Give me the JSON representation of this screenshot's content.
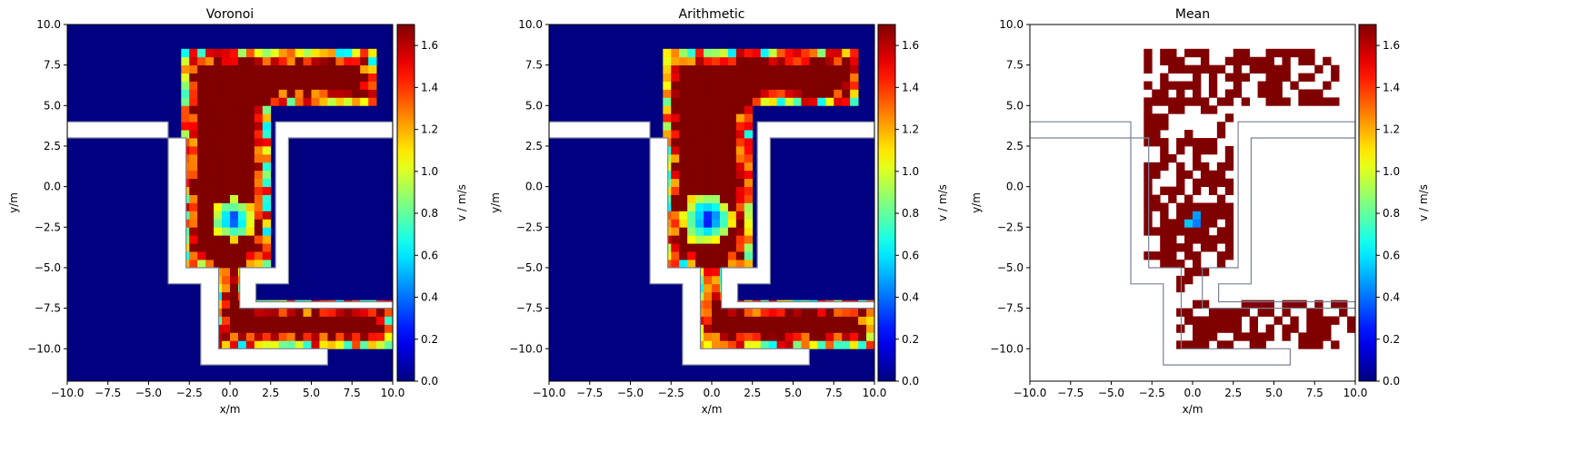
{
  "chart_data": [
    {
      "type": "heatmap",
      "title": "Voronoi",
      "xlabel": "x/m",
      "ylabel": "y/m",
      "xlim": [
        -10,
        10
      ],
      "ylim": [
        -12,
        10
      ],
      "xticks": [
        "−10.0",
        "−7.5",
        "−5.0",
        "−2.5",
        "0.0",
        "2.5",
        "5.0",
        "7.5",
        "10.0"
      ],
      "yticks": [
        "−10.0",
        "−7.5",
        "−5.0",
        "−2.5",
        "0.0",
        "2.5",
        "5.0",
        "7.5",
        "10.0"
      ],
      "background": "full",
      "colorbar": {
        "label": "v / m/s",
        "range": [
          0,
          1.7
        ],
        "ticks": [
          "0.0",
          "0.2",
          "0.4",
          "0.6",
          "0.8",
          "1.0",
          "1.2",
          "1.4",
          "1.6"
        ],
        "colormap": "jet"
      },
      "regions_value_m_s": {
        "outside": 0.0,
        "corridor_core": 1.7,
        "corridor_edges": "0.6–1.6",
        "blob_center": [
          0.2,
          -2.0
        ],
        "blob_value": 0.25
      }
    },
    {
      "type": "heatmap",
      "title": "Arithmetic",
      "xlabel": "x/m",
      "ylabel": "y/m",
      "xlim": [
        -10,
        10
      ],
      "ylim": [
        -12,
        10
      ],
      "xticks": [
        "−10.0",
        "−7.5",
        "−5.0",
        "−2.5",
        "0.0",
        "2.5",
        "5.0",
        "7.5",
        "10.0"
      ],
      "yticks": [
        "−10.0",
        "−7.5",
        "−5.0",
        "−2.5",
        "0.0",
        "2.5",
        "5.0",
        "7.5",
        "10.0"
      ],
      "background": "full",
      "colorbar": {
        "label": "v / m/s",
        "range": [
          0,
          1.7
        ],
        "ticks": [
          "0.0",
          "0.2",
          "0.4",
          "0.6",
          "0.8",
          "1.0",
          "1.2",
          "1.4",
          "1.6"
        ],
        "colormap": "jet"
      },
      "regions_value_m_s": {
        "outside": 0.0,
        "corridor_core": 1.7,
        "corridor_edges": "0.8–1.6",
        "blob_center": [
          -0.3,
          -2.0
        ],
        "blob_value": 0.25
      }
    },
    {
      "type": "heatmap",
      "title": "Mean",
      "xlabel": "x/m",
      "ylabel": "y/m",
      "xlim": [
        -10,
        10
      ],
      "ylim": [
        -12,
        10
      ],
      "xticks": [
        "−10.0",
        "−7.5",
        "−5.0",
        "−2.5",
        "0.0",
        "2.5",
        "5.0",
        "7.5",
        "10.0"
      ],
      "yticks": [
        "−10.0",
        "−7.5",
        "−5.0",
        "−2.5",
        "0.0",
        "2.5",
        "5.0",
        "7.5",
        "10.0"
      ],
      "background": "sparse",
      "colorbar": {
        "label": "v / m/s",
        "range": [
          0,
          1.7
        ],
        "ticks": [
          "0.0",
          "0.2",
          "0.4",
          "0.6",
          "0.8",
          "1.0",
          "1.2",
          "1.4",
          "1.6"
        ],
        "colormap": "jet"
      },
      "regions_value_m_s": {
        "outside": "empty",
        "corridor_core": 1.7,
        "blob_center": [
          0.0,
          -2.0
        ],
        "blob_value": 0.15
      }
    }
  ],
  "geometry_outline_color": "#7a8196"
}
